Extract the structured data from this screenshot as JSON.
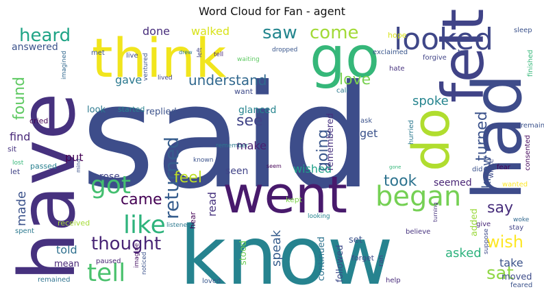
{
  "title": "Word Cloud for Fan - agent",
  "words": [
    {
      "text": "said",
      "color": "#3d4d8a"
    },
    {
      "text": "know",
      "color": "#26838f"
    },
    {
      "text": "have",
      "color": "#46317e"
    },
    {
      "text": "think",
      "color": "#f1e51d"
    },
    {
      "text": "went",
      "color": "#481a6c"
    },
    {
      "text": "felt",
      "color": "#404387"
    },
    {
      "text": "go",
      "color": "#35b779"
    },
    {
      "text": "had",
      "color": "#3e4c8a"
    },
    {
      "text": "do",
      "color": "#b0dd2f"
    },
    {
      "text": "looked",
      "color": "#3f4788"
    },
    {
      "text": "began",
      "color": "#75d054"
    },
    {
      "text": "got",
      "color": "#44bf70"
    },
    {
      "text": "like",
      "color": "#2eb37c"
    },
    {
      "text": "tell",
      "color": "#4ac16d"
    },
    {
      "text": "heard",
      "color": "#20a486"
    },
    {
      "text": "saw",
      "color": "#24868e"
    },
    {
      "text": "come",
      "color": "#a2da37"
    },
    {
      "text": "returned",
      "color": "#365d8d"
    },
    {
      "text": "thought",
      "color": "#482475"
    },
    {
      "text": "found",
      "color": "#5ec962"
    },
    {
      "text": "understand",
      "color": "#31688e"
    },
    {
      "text": "going",
      "color": "#39568c"
    },
    {
      "text": "turned",
      "color": "#3b528b"
    },
    {
      "text": "wish",
      "color": "#fde725"
    },
    {
      "text": "love",
      "color": "#7ad151"
    },
    {
      "text": "see",
      "color": "#414487"
    },
    {
      "text": "took",
      "color": "#2c728e"
    },
    {
      "text": "say",
      "color": "#472d7b"
    },
    {
      "text": "feel",
      "color": "#bddf26"
    },
    {
      "text": "came",
      "color": "#440154"
    },
    {
      "text": "sat",
      "color": "#8fd744"
    },
    {
      "text": "made",
      "color": "#3b528b"
    },
    {
      "text": "knew",
      "color": "#3b528b"
    },
    {
      "text": "spoke",
      "color": "#25848e"
    },
    {
      "text": "find",
      "color": "#482878"
    },
    {
      "text": "walked",
      "color": "#d8e219"
    },
    {
      "text": "done",
      "color": "#472d7b"
    },
    {
      "text": "answered",
      "color": "#3b528b"
    },
    {
      "text": "gave",
      "color": "#2a788e"
    },
    {
      "text": "get",
      "color": "#3b528b"
    },
    {
      "text": "make",
      "color": "#481f70"
    },
    {
      "text": "put",
      "color": "#440154"
    },
    {
      "text": "seen",
      "color": "#404387"
    },
    {
      "text": "read",
      "color": "#46327e"
    },
    {
      "text": "speak",
      "color": "#365d8d"
    },
    {
      "text": "told",
      "color": "#2e6f8e"
    },
    {
      "text": "asked",
      "color": "#2db27d"
    },
    {
      "text": "seemed",
      "color": "#482475"
    },
    {
      "text": "take",
      "color": "#3b528b"
    },
    {
      "text": "wished",
      "color": "#1fa188"
    },
    {
      "text": "glanced",
      "color": "#25848e"
    },
    {
      "text": "replied",
      "color": "#3b528b"
    },
    {
      "text": "remembered",
      "color": "#46307e"
    },
    {
      "text": "continued",
      "color": "#2c728e"
    },
    {
      "text": "followed",
      "color": "#3e4a89"
    },
    {
      "text": "moved",
      "color": "#3e4c8a"
    },
    {
      "text": "added",
      "color": "#9bd93c"
    },
    {
      "text": "rose",
      "color": "#404387"
    },
    {
      "text": "look",
      "color": "#2a788e"
    },
    {
      "text": "started",
      "color": "#26828e"
    },
    {
      "text": "want",
      "color": "#3e4a89"
    },
    {
      "text": "cried",
      "color": "#440154"
    },
    {
      "text": "received",
      "color": "#a5db36"
    },
    {
      "text": "mean",
      "color": "#482677"
    },
    {
      "text": "stood",
      "color": "#6ece58"
    },
    {
      "text": "set",
      "color": "#3b528b"
    },
    {
      "text": "forget",
      "color": "#3e4c8a"
    },
    {
      "text": "let",
      "color": "#414487"
    },
    {
      "text": "sit",
      "color": "#46337f"
    },
    {
      "text": "lost",
      "color": "#35b779"
    },
    {
      "text": "passed",
      "color": "#277f8e"
    },
    {
      "text": "spent",
      "color": "#2a788e"
    },
    {
      "text": "paused",
      "color": "#482475"
    },
    {
      "text": "noticed",
      "color": "#3b528b"
    },
    {
      "text": "imagine",
      "color": "#471164"
    },
    {
      "text": "remained",
      "color": "#2c728e"
    },
    {
      "text": "loved",
      "color": "#38588c"
    },
    {
      "text": "listened",
      "color": "#2a788e"
    },
    {
      "text": "hear",
      "color": "#440154"
    },
    {
      "text": "kept",
      "color": "#7fd34e"
    },
    {
      "text": "looking",
      "color": "#25848e"
    },
    {
      "text": "believe",
      "color": "#46327e"
    },
    {
      "text": "help",
      "color": "#472a7a"
    },
    {
      "text": "feared",
      "color": "#3b528b"
    },
    {
      "text": "ran",
      "color": "#414487"
    },
    {
      "text": "give",
      "color": "#482878"
    },
    {
      "text": "suppose",
      "color": "#3e4a89"
    },
    {
      "text": "stay",
      "color": "#404387"
    },
    {
      "text": "woke",
      "color": "#31688e"
    },
    {
      "text": "wanted",
      "color": "#fde725"
    },
    {
      "text": "wrote",
      "color": "#3e4c8a"
    },
    {
      "text": "fear",
      "color": "#440154"
    },
    {
      "text": "did",
      "color": "#3b528b"
    },
    {
      "text": "consented",
      "color": "#46085c"
    },
    {
      "text": "remain",
      "color": "#3b528b"
    },
    {
      "text": "hurried",
      "color": "#2a788e"
    },
    {
      "text": "ask",
      "color": "#3b528b"
    },
    {
      "text": "call",
      "color": "#2a788e"
    },
    {
      "text": "hate",
      "color": "#46327e"
    },
    {
      "text": "forgive",
      "color": "#414487"
    },
    {
      "text": "try",
      "color": "#3e4a89"
    },
    {
      "text": "exclaimed",
      "color": "#39568c"
    },
    {
      "text": "hope",
      "color": "#d8e219"
    },
    {
      "text": "sleep",
      "color": "#3b528b"
    },
    {
      "text": "finished",
      "color": "#35b779"
    },
    {
      "text": "dropped",
      "color": "#39568c"
    },
    {
      "text": "waiting",
      "color": "#5ec962"
    },
    {
      "text": "drew",
      "color": "#2a788e"
    },
    {
      "text": "lived",
      "color": "#404387"
    },
    {
      "text": "ventured",
      "color": "#3b528b"
    },
    {
      "text": "live",
      "color": "#3e4a89"
    },
    {
      "text": "met",
      "color": "#3b528b"
    },
    {
      "text": "left",
      "color": "#404387"
    },
    {
      "text": "tell",
      "color": "#482878"
    },
    {
      "text": "imagined",
      "color": "#31688e"
    },
    {
      "text": "remember",
      "color": "#2a788e"
    },
    {
      "text": "known",
      "color": "#3b528b"
    },
    {
      "text": "seem",
      "color": "#440154"
    },
    {
      "text": "mind",
      "color": "#3b528b"
    },
    {
      "text": "gone",
      "color": "#35b779"
    },
    {
      "text": "turning",
      "color": "#46327e"
    }
  ]
}
